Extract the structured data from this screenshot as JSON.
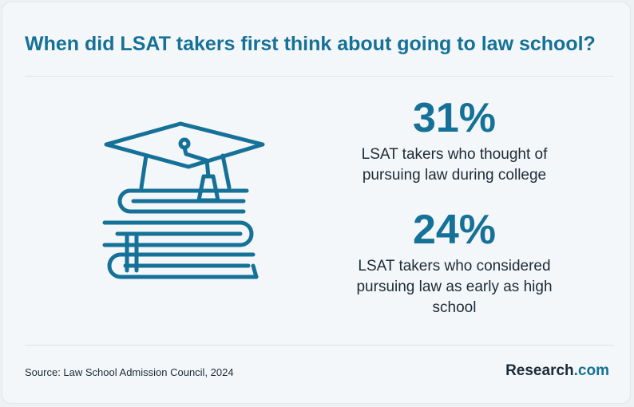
{
  "title": "When did LSAT takers first think about going to law school?",
  "stats": [
    {
      "value": "31%",
      "label": "LSAT takers who thought of pursuing law during college"
    },
    {
      "value": "24%",
      "label": "LSAT takers who considered pursuing law as early as high school"
    }
  ],
  "illustration": {
    "icon": "graduation-cap-on-books-icon",
    "color": "#157197"
  },
  "footer": {
    "source": "Source: Law School Admission Council, 2024",
    "brand_name": "Research",
    "brand_suffix": ".com"
  },
  "colors": {
    "accent": "#157197",
    "text": "#1d2b36",
    "background": "#f4f7f9"
  }
}
